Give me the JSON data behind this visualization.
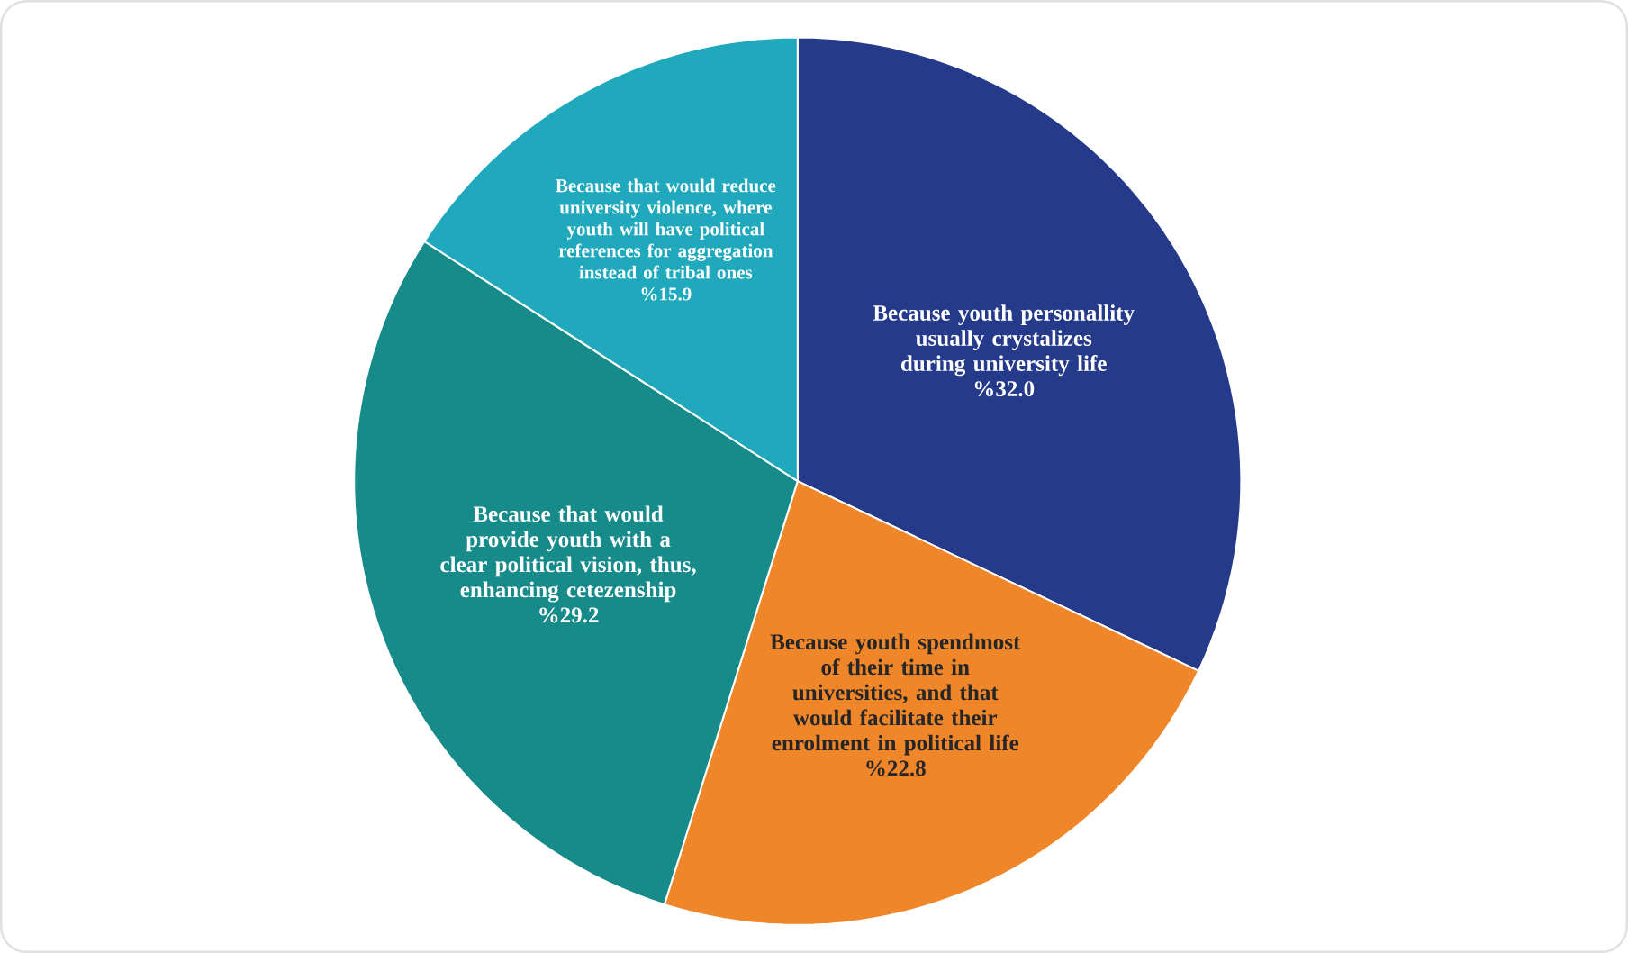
{
  "chart_data": {
    "type": "pie",
    "categories": [
      "Because youth personallity usually crystalizes during university life",
      "Because youth spendmost of their time in universities, and that would facilitate their enrolment in political life",
      "Because that would provide youth with a clear political vision, thus, enhancing cetezenship",
      "Because that would reduce university violence, where youth will have political references for aggregation instead of tribal ones"
    ],
    "values": [
      32.0,
      22.8,
      29.2,
      15.9
    ],
    "value_labels": [
      "%32.0",
      "%22.8",
      "%29.2",
      "%15.9"
    ],
    "colors": [
      "#253a8a",
      "#f0862a",
      "#178a8a",
      "#20a9bc"
    ]
  }
}
